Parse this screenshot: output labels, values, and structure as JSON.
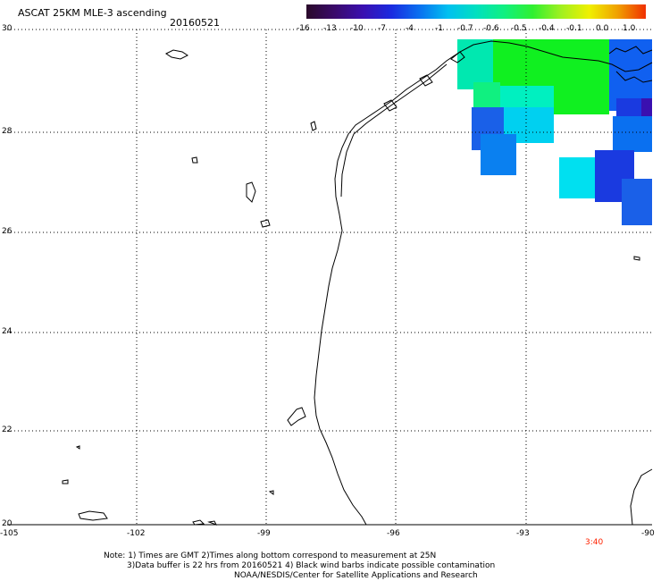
{
  "header": {
    "title": "ASCAT 25KM MLE-3 ascending",
    "date": "20160521"
  },
  "colorbar": {
    "labels": [
      "-16",
      "-13",
      "-10",
      "-7",
      "-4",
      "-1",
      "-0.7",
      "-0.6",
      "-0.5",
      "-0.4",
      "-0.1",
      "0.0",
      "1.0"
    ],
    "colors": [
      "#2a0a2a",
      "#3a0a6a",
      "#3a10b0",
      "#1a2ae0",
      "#0a70f0",
      "#00c0f0",
      "#00e0c0",
      "#10f080",
      "#30f030",
      "#a0f020",
      "#f0f000",
      "#f0a000",
      "#f03000"
    ]
  },
  "map": {
    "y_axis_labels": [
      "30",
      "28",
      "26",
      "24",
      "22",
      "20"
    ],
    "x_axis_labels": [
      "-105",
      "-102",
      "-99",
      "-96",
      "-93",
      "-90"
    ],
    "time_label": "3:40",
    "colors": {
      "grid": "#000000",
      "coast": "#000000",
      "time": "#ff2200"
    }
  },
  "footer": {
    "line1": "Note: 1) Times are GMT 2)Times along bottom correspond to measurement at 25N",
    "line2": "3)Data buffer is 22 hrs from 20160521 4) Black wind barbs indicate possible contamination",
    "line3": "NOAA/NESDIS/Center for Satellite Applications and Research"
  }
}
